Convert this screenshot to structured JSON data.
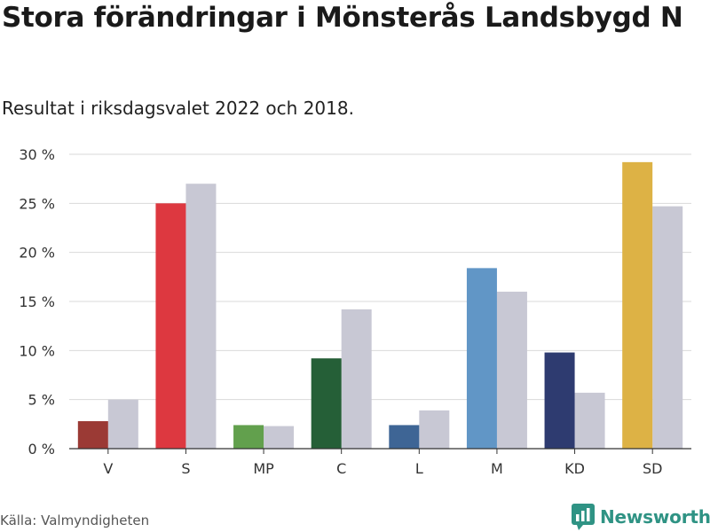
{
  "title": "Stora förändringar i Mönsterås Landsbygd N",
  "subtitle": "Resultat i riksdagsvalet 2022 och 2018.",
  "source": "Källa: Valmyndigheten",
  "brand": "Newsworthy",
  "brand_icon": "bar-chart-logo-icon",
  "colors": {
    "compare_bar": "#c8c8d4",
    "axis": "#333333",
    "grid": "#d9d9d9",
    "brand": "#2f9384"
  },
  "chart_data": {
    "type": "bar",
    "categories": [
      "V",
      "S",
      "MP",
      "C",
      "L",
      "M",
      "KD",
      "SD"
    ],
    "series": [
      {
        "values": [
          2.8,
          25.0,
          2.4,
          9.2,
          2.4,
          18.4,
          9.8,
          29.2
        ],
        "colors": [
          "#9b3a35",
          "#dd3840",
          "#62a04d",
          "#255f37",
          "#3e6595",
          "#6196c6",
          "#2e3b70",
          "#ddb245"
        ]
      },
      {
        "values": [
          5.0,
          27.0,
          2.3,
          14.2,
          3.9,
          16.0,
          5.7,
          24.7
        ],
        "color": "#c8c8d4"
      }
    ],
    "yticks": [
      "0 %",
      "5 %",
      "10 %",
      "15 %",
      "20 %",
      "25 %",
      "30 %"
    ],
    "ytick_values": [
      0,
      5,
      10,
      15,
      20,
      25,
      30
    ],
    "ylim": [
      0,
      30
    ],
    "grid": true,
    "legend": "none"
  }
}
